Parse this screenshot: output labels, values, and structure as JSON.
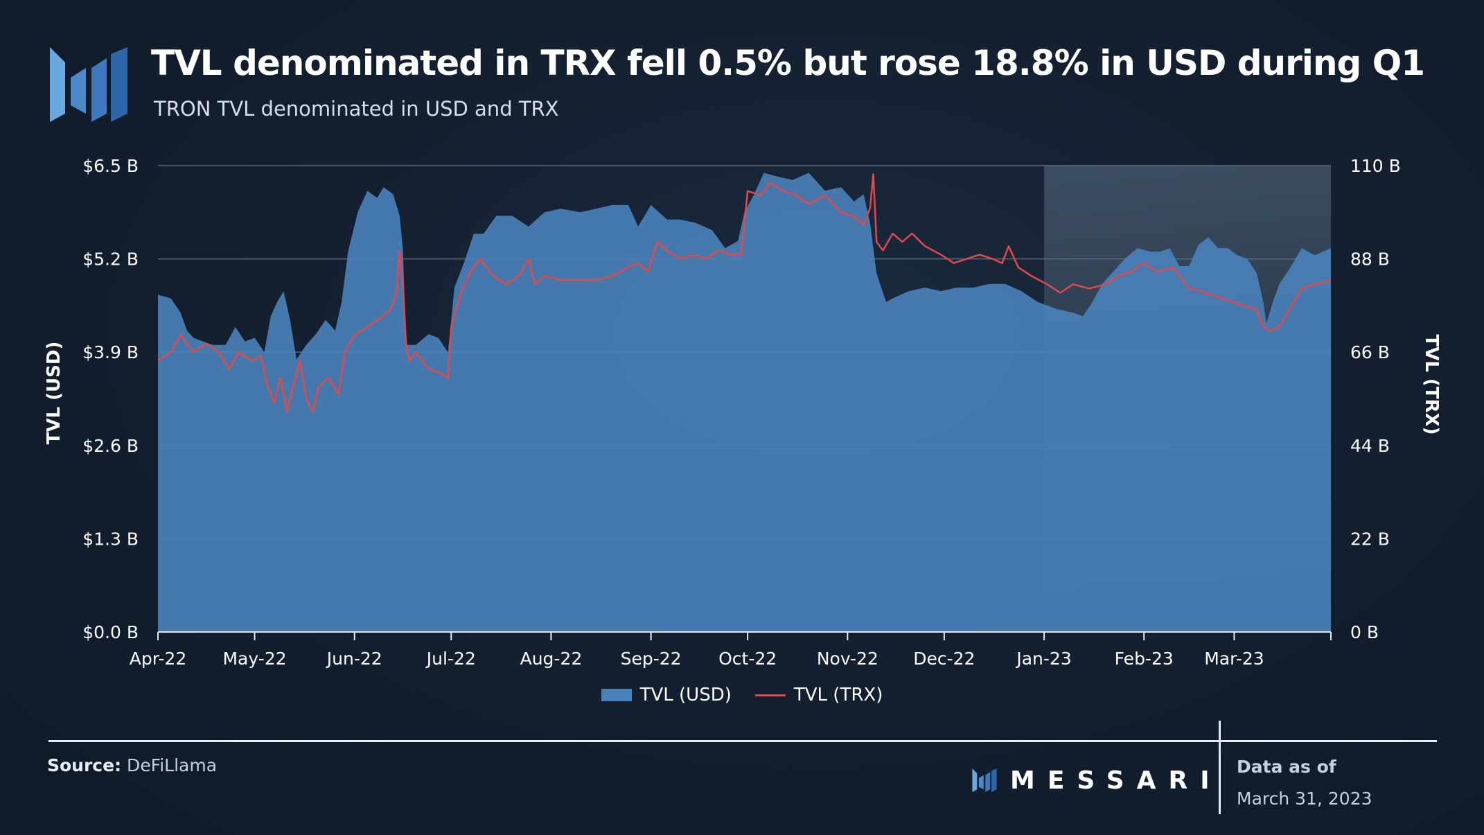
{
  "header": {
    "title": "TVL denominated in TRX fell 0.5% but rose 18.8% in USD during Q1",
    "subtitle": "TRON TVL denominated in USD and TRX"
  },
  "colors": {
    "usd_area": "#4a80b8",
    "trx_line": "#e04a4a",
    "highlight": "#5a7088"
  },
  "footer": {
    "source_label": "Source:",
    "source_value": "DeFiLlama",
    "brand": "MESSARI",
    "data_as_of_label": "Data as of",
    "data_as_of_date": "March 31, 2023"
  },
  "chart_data": {
    "type": "area",
    "title": "TVL denominated in TRX fell 0.5% but rose 18.8% in USD during Q1",
    "subtitle": "TRON TVL denominated in USD and TRX",
    "x_range": [
      "2022-04-01",
      "2023-03-31"
    ],
    "x_tick_labels": [
      "Apr-22",
      "May-22",
      "Jun-22",
      "Jul-22",
      "Aug-22",
      "Sep-22",
      "Oct-22",
      "Nov-22",
      "Dec-22",
      "Jan-23",
      "Feb-23",
      "Mar-23"
    ],
    "y_left": {
      "label": "TVL (USD)",
      "unit": "$B",
      "range": [
        0,
        6.5
      ],
      "tick_labels": [
        "$0.0 B",
        "$1.3 B",
        "$2.6 B",
        "$3.9 B",
        "$5.2 B",
        "$6.5 B"
      ]
    },
    "y_right": {
      "label": "TVL (TRX)",
      "unit": "B",
      "range": [
        0,
        110
      ],
      "tick_labels": [
        "0 B",
        "22 B",
        "44 B",
        "66 B",
        "88 B",
        "110 B"
      ]
    },
    "grid": "horizontal",
    "legend": "bottom-center",
    "highlight_period": [
      "2023-01-01",
      "2023-03-31"
    ],
    "series": [
      {
        "name": "TVL (USD)",
        "type": "area",
        "axis": "left",
        "points": [
          [
            "2022-04-01",
            4.7
          ],
          [
            "2022-04-05",
            4.65
          ],
          [
            "2022-04-08",
            4.45
          ],
          [
            "2022-04-10",
            4.2
          ],
          [
            "2022-04-12",
            4.1
          ],
          [
            "2022-04-15",
            4.05
          ],
          [
            "2022-04-18",
            4.0
          ],
          [
            "2022-04-22",
            4.0
          ],
          [
            "2022-04-25",
            4.25
          ],
          [
            "2022-04-28",
            4.05
          ],
          [
            "2022-05-01",
            4.1
          ],
          [
            "2022-05-04",
            3.9
          ],
          [
            "2022-05-06",
            4.4
          ],
          [
            "2022-05-08",
            4.6
          ],
          [
            "2022-05-10",
            4.75
          ],
          [
            "2022-05-12",
            4.35
          ],
          [
            "2022-05-14",
            3.8
          ],
          [
            "2022-05-17",
            4.0
          ],
          [
            "2022-05-20",
            4.15
          ],
          [
            "2022-05-23",
            4.35
          ],
          [
            "2022-05-26",
            4.2
          ],
          [
            "2022-05-28",
            4.6
          ],
          [
            "2022-05-30",
            5.3
          ],
          [
            "2022-06-02",
            5.85
          ],
          [
            "2022-06-05",
            6.15
          ],
          [
            "2022-06-08",
            6.05
          ],
          [
            "2022-06-10",
            6.2
          ],
          [
            "2022-06-13",
            6.1
          ],
          [
            "2022-06-15",
            5.8
          ],
          [
            "2022-06-16",
            5.35
          ],
          [
            "2022-06-17",
            4.0
          ],
          [
            "2022-06-20",
            4.0
          ],
          [
            "2022-06-24",
            4.15
          ],
          [
            "2022-06-27",
            4.1
          ],
          [
            "2022-06-30",
            3.9
          ],
          [
            "2022-07-02",
            4.8
          ],
          [
            "2022-07-05",
            5.15
          ],
          [
            "2022-07-08",
            5.55
          ],
          [
            "2022-07-11",
            5.55
          ],
          [
            "2022-07-15",
            5.8
          ],
          [
            "2022-07-20",
            5.8
          ],
          [
            "2022-07-25",
            5.65
          ],
          [
            "2022-07-30",
            5.85
          ],
          [
            "2022-08-04",
            5.9
          ],
          [
            "2022-08-10",
            5.85
          ],
          [
            "2022-08-15",
            5.9
          ],
          [
            "2022-08-20",
            5.95
          ],
          [
            "2022-08-25",
            5.95
          ],
          [
            "2022-08-28",
            5.65
          ],
          [
            "2022-09-01",
            5.95
          ],
          [
            "2022-09-06",
            5.75
          ],
          [
            "2022-09-10",
            5.75
          ],
          [
            "2022-09-15",
            5.7
          ],
          [
            "2022-09-20",
            5.6
          ],
          [
            "2022-09-24",
            5.35
          ],
          [
            "2022-09-28",
            5.45
          ],
          [
            "2022-09-30",
            5.85
          ],
          [
            "2022-10-03",
            6.1
          ],
          [
            "2022-10-06",
            6.4
          ],
          [
            "2022-10-10",
            6.35
          ],
          [
            "2022-10-15",
            6.3
          ],
          [
            "2022-10-20",
            6.4
          ],
          [
            "2022-10-25",
            6.15
          ],
          [
            "2022-10-30",
            6.2
          ],
          [
            "2022-11-03",
            6.0
          ],
          [
            "2022-11-06",
            6.1
          ],
          [
            "2022-11-08",
            5.7
          ],
          [
            "2022-11-10",
            5.0
          ],
          [
            "2022-11-13",
            4.6
          ],
          [
            "2022-11-15",
            4.65
          ],
          [
            "2022-11-20",
            4.75
          ],
          [
            "2022-11-25",
            4.8
          ],
          [
            "2022-11-30",
            4.75
          ],
          [
            "2022-12-05",
            4.8
          ],
          [
            "2022-12-10",
            4.8
          ],
          [
            "2022-12-15",
            4.85
          ],
          [
            "2022-12-20",
            4.85
          ],
          [
            "2022-12-25",
            4.75
          ],
          [
            "2022-12-30",
            4.6
          ],
          [
            "2023-01-05",
            4.5
          ],
          [
            "2023-01-10",
            4.45
          ],
          [
            "2023-01-13",
            4.4
          ],
          [
            "2023-01-16",
            4.6
          ],
          [
            "2023-01-19",
            4.85
          ],
          [
            "2023-01-22",
            5.0
          ],
          [
            "2023-01-26",
            5.2
          ],
          [
            "2023-01-30",
            5.35
          ],
          [
            "2023-02-03",
            5.3
          ],
          [
            "2023-02-06",
            5.3
          ],
          [
            "2023-02-09",
            5.35
          ],
          [
            "2023-02-12",
            5.1
          ],
          [
            "2023-02-15",
            5.1
          ],
          [
            "2023-02-18",
            5.4
          ],
          [
            "2023-02-21",
            5.5
          ],
          [
            "2023-02-24",
            5.35
          ],
          [
            "2023-02-27",
            5.35
          ],
          [
            "2023-03-02",
            5.25
          ],
          [
            "2023-03-05",
            5.2
          ],
          [
            "2023-03-08",
            5.0
          ],
          [
            "2023-03-10",
            4.6
          ],
          [
            "2023-03-11",
            4.3
          ],
          [
            "2023-03-13",
            4.6
          ],
          [
            "2023-03-15",
            4.85
          ],
          [
            "2023-03-18",
            5.05
          ],
          [
            "2023-03-22",
            5.35
          ],
          [
            "2023-03-26",
            5.25
          ],
          [
            "2023-03-31",
            5.35
          ]
        ]
      },
      {
        "name": "TVL (TRX)",
        "type": "line",
        "axis": "right",
        "points": [
          [
            "2022-04-01",
            64.0
          ],
          [
            "2022-04-05",
            66.0
          ],
          [
            "2022-04-08",
            70.0
          ],
          [
            "2022-04-12",
            66.0
          ],
          [
            "2022-04-16",
            68.0
          ],
          [
            "2022-04-20",
            66.0
          ],
          [
            "2022-04-23",
            62.0
          ],
          [
            "2022-04-26",
            66.0
          ],
          [
            "2022-04-30",
            64.0
          ],
          [
            "2022-05-03",
            65.0
          ],
          [
            "2022-05-05",
            58.0
          ],
          [
            "2022-05-07",
            54.0
          ],
          [
            "2022-05-09",
            60.0
          ],
          [
            "2022-05-11",
            52.0
          ],
          [
            "2022-05-13",
            58.0
          ],
          [
            "2022-05-15",
            64.0
          ],
          [
            "2022-05-17",
            55.0
          ],
          [
            "2022-05-19",
            52.0
          ],
          [
            "2022-05-21",
            58.0
          ],
          [
            "2022-05-24",
            60.0
          ],
          [
            "2022-05-27",
            56.0
          ],
          [
            "2022-05-29",
            66.0
          ],
          [
            "2022-06-01",
            70.0
          ],
          [
            "2022-06-05",
            72.0
          ],
          [
            "2022-06-09",
            74.0
          ],
          [
            "2022-06-12",
            76.0
          ],
          [
            "2022-06-14",
            80.0
          ],
          [
            "2022-06-15",
            90.0
          ],
          [
            "2022-06-16",
            82.0
          ],
          [
            "2022-06-17",
            68.0
          ],
          [
            "2022-06-18",
            64.0
          ],
          [
            "2022-06-20",
            66.0
          ],
          [
            "2022-06-24",
            62.0
          ],
          [
            "2022-06-28",
            61.0
          ],
          [
            "2022-06-30",
            60.0
          ],
          [
            "2022-07-01",
            72.0
          ],
          [
            "2022-07-04",
            80.0
          ],
          [
            "2022-07-07",
            85.0
          ],
          [
            "2022-07-10",
            88.0
          ],
          [
            "2022-07-14",
            84.0
          ],
          [
            "2022-07-18",
            82.0
          ],
          [
            "2022-07-22",
            84.0
          ],
          [
            "2022-07-25",
            88.0
          ],
          [
            "2022-07-27",
            82.0
          ],
          [
            "2022-07-30",
            84.0
          ],
          [
            "2022-08-04",
            83.0
          ],
          [
            "2022-08-10",
            83.0
          ],
          [
            "2022-08-15",
            83.0
          ],
          [
            "2022-08-20",
            84.0
          ],
          [
            "2022-08-25",
            86.0
          ],
          [
            "2022-08-28",
            87.0
          ],
          [
            "2022-08-31",
            85.0
          ],
          [
            "2022-09-03",
            92.0
          ],
          [
            "2022-09-06",
            90.0
          ],
          [
            "2022-09-10",
            88.0
          ],
          [
            "2022-09-14",
            89.0
          ],
          [
            "2022-09-18",
            88.0
          ],
          [
            "2022-09-22",
            90.0
          ],
          [
            "2022-09-26",
            89.0
          ],
          [
            "2022-09-29",
            89.0
          ],
          [
            "2022-10-01",
            104.0
          ],
          [
            "2022-10-05",
            103.0
          ],
          [
            "2022-10-08",
            106.0
          ],
          [
            "2022-10-12",
            104.0
          ],
          [
            "2022-10-16",
            103.0
          ],
          [
            "2022-10-20",
            101.0
          ],
          [
            "2022-10-25",
            103.0
          ],
          [
            "2022-10-30",
            99.0
          ],
          [
            "2022-11-03",
            98.0
          ],
          [
            "2022-11-06",
            96.0
          ],
          [
            "2022-11-08",
            100.0
          ],
          [
            "2022-11-09",
            108.0
          ],
          [
            "2022-11-10",
            92.0
          ],
          [
            "2022-11-12",
            90.0
          ],
          [
            "2022-11-15",
            94.0
          ],
          [
            "2022-11-18",
            92.0
          ],
          [
            "2022-11-21",
            94.0
          ],
          [
            "2022-11-25",
            91.0
          ],
          [
            "2022-11-30",
            89.0
          ],
          [
            "2022-12-04",
            87.0
          ],
          [
            "2022-12-08",
            88.0
          ],
          [
            "2022-12-12",
            89.0
          ],
          [
            "2022-12-16",
            88.0
          ],
          [
            "2022-12-19",
            87.0
          ],
          [
            "2022-12-21",
            91.0
          ],
          [
            "2022-12-24",
            86.0
          ],
          [
            "2022-12-28",
            84.0
          ],
          [
            "2023-01-02",
            82.0
          ],
          [
            "2023-01-06",
            80.0
          ],
          [
            "2023-01-10",
            82.0
          ],
          [
            "2023-01-15",
            81.0
          ],
          [
            "2023-01-20",
            82.0
          ],
          [
            "2023-01-24",
            84.0
          ],
          [
            "2023-01-28",
            85.0
          ],
          [
            "2023-02-01",
            87.0
          ],
          [
            "2023-02-05",
            85.0
          ],
          [
            "2023-02-10",
            86.0
          ],
          [
            "2023-02-15",
            81.0
          ],
          [
            "2023-02-20",
            80.0
          ],
          [
            "2023-02-24",
            79.0
          ],
          [
            "2023-02-28",
            78.0
          ],
          [
            "2023-03-04",
            77.0
          ],
          [
            "2023-03-08",
            76.0
          ],
          [
            "2023-03-10",
            72.0
          ],
          [
            "2023-03-12",
            71.0
          ],
          [
            "2023-03-15",
            72.0
          ],
          [
            "2023-03-18",
            76.0
          ],
          [
            "2023-03-22",
            81.0
          ],
          [
            "2023-03-26",
            82.0
          ],
          [
            "2023-03-31",
            83.0
          ]
        ]
      }
    ]
  }
}
